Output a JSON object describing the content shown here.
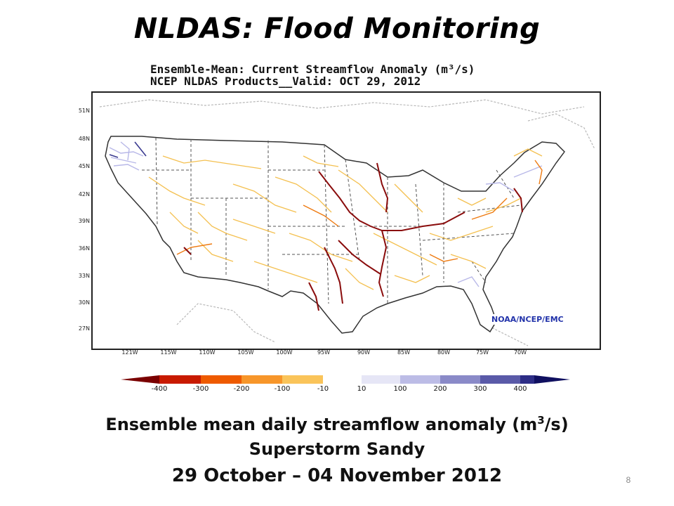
{
  "slide": {
    "title": "NLDAS:  Flood Monitoring",
    "page_number": "8"
  },
  "map": {
    "header_line1": "Ensemble-Mean: Current Streamflow Anomaly (m³/s)",
    "header_line2": "NCEP NLDAS Products__Valid: OCT 29, 2012",
    "credit": "NOAA/NCEP/EMC",
    "lat_labels": [
      "51N",
      "48N",
      "45N",
      "42N",
      "39N",
      "36N",
      "33N",
      "30N",
      "27N"
    ],
    "lon_labels": [
      "121W",
      "115W",
      "110W",
      "105W",
      "100W",
      "95W",
      "90W",
      "85W",
      "80W",
      "75W",
      "70W"
    ],
    "colorbar": {
      "ticks": [
        "-400",
        "-300",
        "-200",
        "-100",
        "-10",
        "10",
        "100",
        "200",
        "300",
        "400"
      ],
      "colors": [
        "#7a0000",
        "#c81a00",
        "#ee5a00",
        "#f7962a",
        "#fac45a",
        "#fde7a6",
        "#ffffff",
        "#e6e6f6",
        "#bcbce6",
        "#8a8ac8",
        "#5a5aa8",
        "#2d2d86",
        "#101060"
      ]
    }
  },
  "caption": {
    "line1_prefix": "Ensemble mean daily streamflow anomaly (m",
    "line1_sup": "3",
    "line1_suffix": "/s)",
    "line2": "Superstorm Sandy",
    "line3": "29 October – 04 November 2012"
  }
}
